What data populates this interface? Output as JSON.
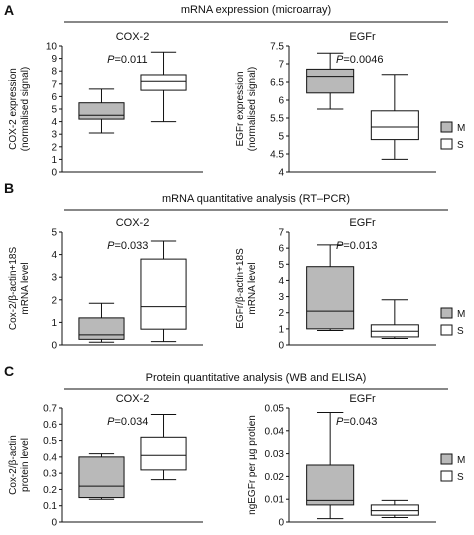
{
  "panels": [
    {
      "letter": "A",
      "title": "mRNA expression (microarray)"
    },
    {
      "letter": "B",
      "title": "mRNA quantitative analysis (RT–PCR)"
    },
    {
      "letter": "C",
      "title": "Protein quantitative analysis (WB and ELISA)"
    }
  ],
  "legend": {
    "items": [
      {
        "label": "M",
        "color": "#b9b9b9"
      },
      {
        "label": "S",
        "color": "#ffffff"
      }
    ]
  },
  "chart_data": [
    {
      "type": "boxplot",
      "panel": "A",
      "title": "COX-2",
      "pvalue": "=0.011",
      "ylabel": [
        "COX-2 expression",
        "(normalised signal)"
      ],
      "ylim": [
        0,
        10
      ],
      "yticks": [
        0,
        1,
        2,
        3,
        4,
        5,
        6,
        7,
        8,
        9,
        10
      ],
      "ytick_labels": [
        "0",
        "1",
        "2",
        "3",
        "4",
        "5",
        "6",
        "7",
        "8",
        "9",
        "10"
      ],
      "groups": [
        {
          "name": "M",
          "min": 3.1,
          "q1": 4.2,
          "median": 4.5,
          "q3": 5.5,
          "max": 6.6
        },
        {
          "name": "S",
          "min": 4.0,
          "q1": 6.5,
          "median": 7.2,
          "q3": 7.7,
          "max": 9.5
        }
      ]
    },
    {
      "type": "boxplot",
      "panel": "A",
      "title": "EGFr",
      "pvalue": "=0.0046",
      "ylabel": [
        "EGFr expression",
        "(normalised signal)"
      ],
      "ylim": [
        4,
        7.5
      ],
      "yticks": [
        4,
        4.5,
        5,
        5.5,
        6,
        6.5,
        7,
        7.5
      ],
      "ytick_labels": [
        "4",
        "4.5",
        "5",
        "5.5",
        "6",
        "6.5",
        "7",
        "7.5"
      ],
      "groups": [
        {
          "name": "M",
          "min": 5.75,
          "q1": 6.2,
          "median": 6.65,
          "q3": 6.85,
          "max": 7.3
        },
        {
          "name": "S",
          "min": 4.35,
          "q1": 4.9,
          "median": 5.25,
          "q3": 5.7,
          "max": 6.7
        }
      ]
    },
    {
      "type": "boxplot",
      "panel": "B",
      "title": "COX-2",
      "pvalue": "=0.033",
      "ylabel": [
        "Cox-2/β-actin+18S",
        "mRNA level"
      ],
      "ylim": [
        0,
        5
      ],
      "yticks": [
        0,
        1,
        2,
        3,
        4,
        5
      ],
      "ytick_labels": [
        "0",
        "1",
        "2",
        "3",
        "4",
        "5"
      ],
      "groups": [
        {
          "name": "M",
          "min": 0.12,
          "q1": 0.25,
          "median": 0.45,
          "q3": 1.2,
          "max": 1.85
        },
        {
          "name": "S",
          "min": 0.15,
          "q1": 0.7,
          "median": 1.7,
          "q3": 3.8,
          "max": 4.6
        }
      ]
    },
    {
      "type": "boxplot",
      "panel": "B",
      "title": "EGFr",
      "pvalue": "=0.013",
      "ylabel": [
        "EGFr/β-actin+18S",
        "mRNA level"
      ],
      "ylim": [
        0,
        7
      ],
      "yticks": [
        0,
        1,
        2,
        3,
        4,
        5,
        6,
        7
      ],
      "ytick_labels": [
        "0",
        "1",
        "2",
        "3",
        "4",
        "5",
        "6",
        "7"
      ],
      "groups": [
        {
          "name": "M",
          "min": 0.9,
          "q1": 1.0,
          "median": 2.1,
          "q3": 4.85,
          "max": 6.2
        },
        {
          "name": "S",
          "min": 0.4,
          "q1": 0.5,
          "median": 0.85,
          "q3": 1.25,
          "max": 2.8
        }
      ]
    },
    {
      "type": "boxplot",
      "panel": "C",
      "title": "COX-2",
      "pvalue": "=0.034",
      "ylabel": [
        "Cox-2/β-actin",
        "protein level"
      ],
      "ylim": [
        0,
        0.7
      ],
      "yticks": [
        0,
        0.1,
        0.2,
        0.3,
        0.4,
        0.5,
        0.6,
        0.7
      ],
      "ytick_labels": [
        "0",
        "0.1",
        "0.2",
        "0.3",
        "0.4",
        "0.5",
        "0.6",
        "0.7"
      ],
      "groups": [
        {
          "name": "M",
          "min": 0.14,
          "q1": 0.15,
          "median": 0.22,
          "q3": 0.4,
          "max": 0.42
        },
        {
          "name": "S",
          "min": 0.26,
          "q1": 0.32,
          "median": 0.41,
          "q3": 0.52,
          "max": 0.66
        }
      ]
    },
    {
      "type": "boxplot",
      "panel": "C",
      "title": "EGFr",
      "pvalue": "=0.043",
      "ylabel": [
        "ngEGFr per µg protien"
      ],
      "ylim": [
        0,
        0.05
      ],
      "yticks": [
        0,
        0.01,
        0.02,
        0.03,
        0.04,
        0.05
      ],
      "ytick_labels": [
        "0",
        "0.01",
        "0.02",
        "0.03",
        "0.04",
        "0.05"
      ],
      "groups": [
        {
          "name": "M",
          "min": 0.0015,
          "q1": 0.0075,
          "median": 0.0095,
          "q3": 0.025,
          "max": 0.048
        },
        {
          "name": "S",
          "min": 0.002,
          "q1": 0.003,
          "median": 0.005,
          "q3": 0.0075,
          "max": 0.0095
        }
      ]
    }
  ]
}
